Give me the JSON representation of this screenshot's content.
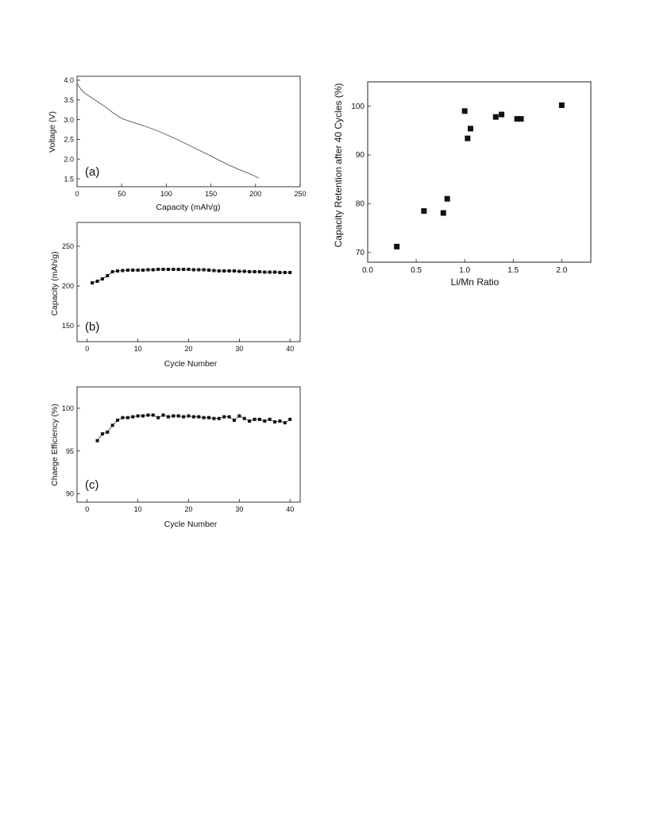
{
  "chart_data": [
    {
      "type": "line",
      "panel_label": "(a)",
      "xlabel": "Capacity (mAh/g)",
      "ylabel": "Voltage (V)",
      "xlim": [
        0,
        250
      ],
      "ylim": [
        1.3,
        4.1
      ],
      "xticks": [
        "0",
        "50",
        "100",
        "150",
        "200",
        "250"
      ],
      "yticks": [
        "1.5",
        "2.0",
        "2.5",
        "3.0",
        "3.5",
        "4.0"
      ],
      "series": [
        {
          "x": [
            0,
            5,
            10,
            20,
            30,
            40,
            50,
            60,
            70,
            80,
            90,
            100,
            110,
            120,
            130,
            140,
            150,
            160,
            170,
            180,
            190,
            200,
            204
          ],
          "y": [
            3.92,
            3.75,
            3.65,
            3.5,
            3.35,
            3.18,
            3.03,
            2.95,
            2.88,
            2.8,
            2.72,
            2.62,
            2.52,
            2.41,
            2.3,
            2.19,
            2.08,
            1.96,
            1.85,
            1.75,
            1.66,
            1.56,
            1.52
          ]
        }
      ]
    },
    {
      "type": "line",
      "panel_label": "(b)",
      "xlabel": "Cycle Number",
      "ylabel": "Capacity (mAh/g)",
      "xlim": [
        -2,
        42
      ],
      "ylim": [
        130,
        280
      ],
      "xticks": [
        "0",
        "10",
        "20",
        "30",
        "40"
      ],
      "yticks": [
        "150",
        "200",
        "250"
      ],
      "series": [
        {
          "x": [
            1,
            2,
            3,
            4,
            5,
            6,
            7,
            8,
            9,
            10,
            11,
            12,
            13,
            14,
            15,
            16,
            17,
            18,
            19,
            20,
            21,
            22,
            23,
            24,
            25,
            26,
            27,
            28,
            29,
            30,
            31,
            32,
            33,
            34,
            35,
            36,
            37,
            38,
            39,
            40
          ],
          "y": [
            204,
            206,
            209,
            213,
            218,
            219,
            219.5,
            220,
            220,
            220,
            220,
            220.5,
            220.5,
            221,
            221,
            221,
            221,
            221,
            221,
            221,
            220.5,
            220.5,
            220.5,
            220,
            219.5,
            219,
            219,
            219,
            219,
            218.5,
            218.5,
            218,
            218,
            218,
            217.5,
            217.5,
            217.5,
            217,
            217,
            217
          ]
        }
      ]
    },
    {
      "type": "line",
      "panel_label": "(c)",
      "xlabel": "Cycle Number",
      "ylabel": "Chaege Efficiency (%)",
      "xlim": [
        -2,
        42
      ],
      "ylim": [
        89,
        102.5
      ],
      "xticks": [
        "0",
        "10",
        "20",
        "30",
        "40"
      ],
      "yticks": [
        "90",
        "95",
        "100"
      ],
      "series": [
        {
          "x": [
            2,
            3,
            4,
            5,
            6,
            7,
            8,
            9,
            10,
            11,
            12,
            13,
            14,
            15,
            16,
            17,
            18,
            19,
            20,
            21,
            22,
            23,
            24,
            25,
            26,
            27,
            28,
            29,
            30,
            31,
            32,
            33,
            34,
            35,
            36,
            37,
            38,
            39,
            40
          ],
          "y": [
            96.2,
            97.0,
            97.2,
            98.0,
            98.6,
            98.9,
            98.9,
            99.0,
            99.1,
            99.1,
            99.2,
            99.2,
            98.9,
            99.2,
            99.0,
            99.1,
            99.1,
            99.0,
            99.1,
            99.0,
            99.0,
            98.9,
            98.9,
            98.8,
            98.8,
            99.0,
            99.0,
            98.6,
            99.1,
            98.8,
            98.5,
            98.7,
            98.7,
            98.5,
            98.7,
            98.4,
            98.5,
            98.3,
            98.7
          ]
        }
      ]
    },
    {
      "type": "scatter",
      "xlabel": "Li/Mn Ratio",
      "ylabel": "Capacity Retention after 40 Cycles (%)",
      "xlim": [
        0,
        2.3
      ],
      "ylim": [
        68,
        105
      ],
      "xticks": [
        "0.0",
        "0.5",
        "1.0",
        "1.5",
        "2.0"
      ],
      "yticks": [
        "70",
        "80",
        "90",
        "100"
      ],
      "series": [
        {
          "x": [
            0.3,
            0.58,
            0.78,
            0.82,
            1.0,
            1.03,
            1.06,
            1.32,
            1.38,
            1.54,
            1.58,
            2.0
          ],
          "y": [
            71.2,
            78.5,
            78.1,
            81.0,
            99.0,
            93.4,
            95.4,
            97.8,
            98.3,
            97.4,
            97.4,
            100.2
          ]
        }
      ]
    }
  ]
}
